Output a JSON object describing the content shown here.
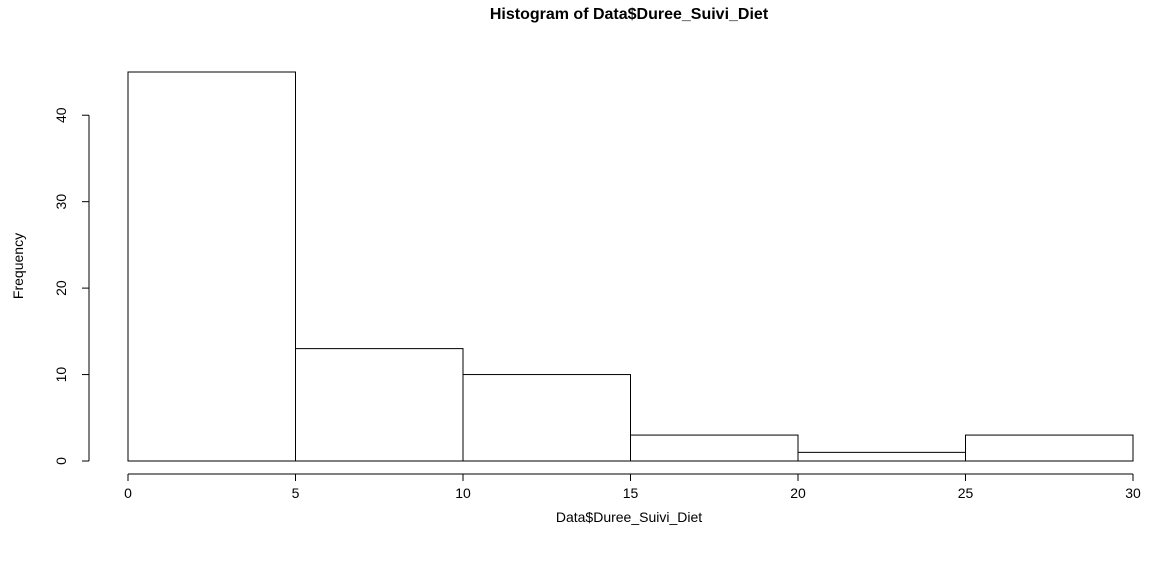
{
  "chart_data": {
    "type": "bar",
    "title": "Histogram of Data$Duree_Suivi_Diet",
    "xlabel": "Data$Duree_Suivi_Diet",
    "ylabel": "Frequency",
    "bins": [
      {
        "start": 0,
        "end": 5,
        "count": 45
      },
      {
        "start": 5,
        "end": 10,
        "count": 13
      },
      {
        "start": 10,
        "end": 15,
        "count": 10
      },
      {
        "start": 15,
        "end": 20,
        "count": 3
      },
      {
        "start": 20,
        "end": 25,
        "count": 1
      },
      {
        "start": 25,
        "end": 30,
        "count": 3
      }
    ],
    "xlim": [
      0,
      30
    ],
    "ylim": [
      0,
      45
    ],
    "x_ticks": [
      "0",
      "5",
      "10",
      "15",
      "20",
      "25",
      "30"
    ],
    "y_ticks": [
      "0",
      "10",
      "20",
      "30",
      "40"
    ],
    "grid": false,
    "colors": {
      "bar_fill": "#ffffff",
      "bar_stroke": "#000000"
    }
  }
}
